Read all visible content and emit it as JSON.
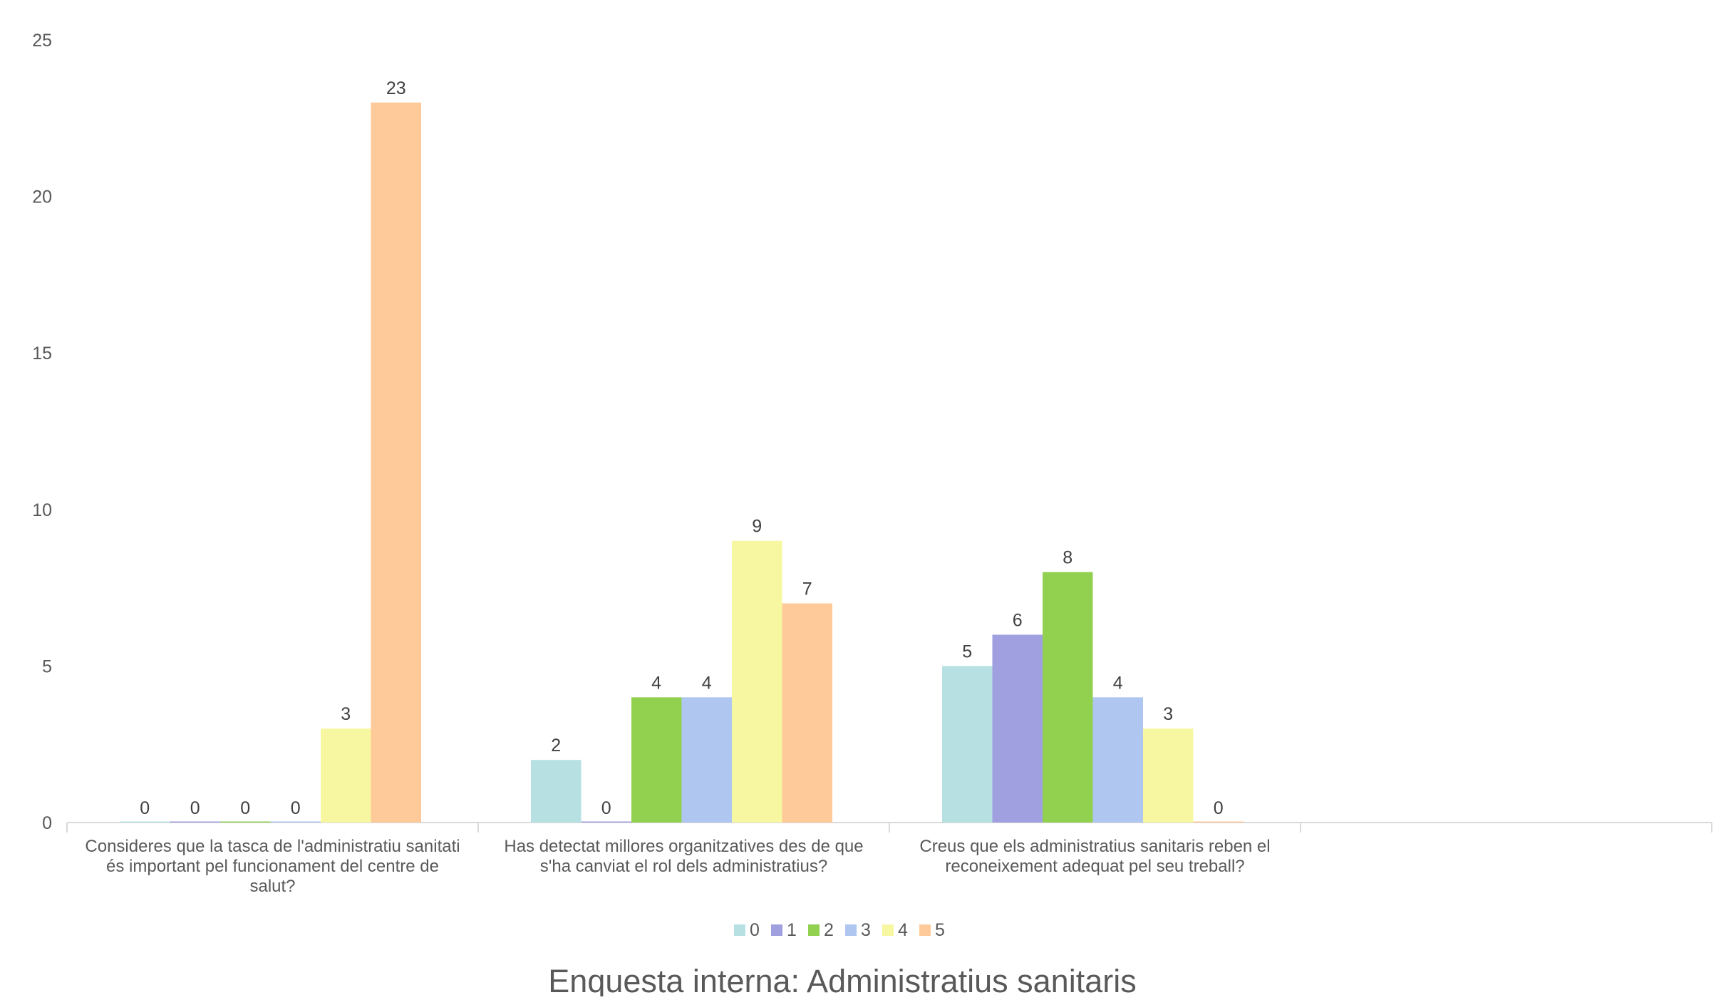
{
  "chart_data": {
    "type": "bar",
    "title": "Enquesta interna: Administratius sanitaris",
    "xlabel": "",
    "ylabel": "",
    "ylim": [
      0,
      25
    ],
    "yticks": [
      0,
      5,
      10,
      15,
      20,
      25
    ],
    "grid": false,
    "legend_position": "bottom",
    "categories": [
      "Consideres que la tasca de l'administratiu sanitati és important pel funcionament del centre de salut?",
      "Has detectat millores organitzatives des de que s'ha canviat el rol dels administratius?",
      "Creus que els administratius sanitaris reben el reconeixement adequat pel seu treball?",
      ""
    ],
    "category_lines": [
      [
        "Consideres que la tasca de l'administratiu sanitati",
        "és important pel funcionament del centre de",
        "salut?"
      ],
      [
        "Has detectat millores organitzatives des de que",
        "s'ha canviat el rol dels administratius?"
      ],
      [
        "Creus que els administratius sanitaris reben el",
        "reconeixement adequat pel seu treball?"
      ],
      []
    ],
    "series": [
      {
        "name": "0",
        "color": "#b7e0e3",
        "values": [
          0,
          2,
          5,
          null
        ]
      },
      {
        "name": "1",
        "color": "#a09fe0",
        "values": [
          0,
          0,
          6,
          null
        ]
      },
      {
        "name": "2",
        "color": "#92d050",
        "values": [
          0,
          4,
          8,
          null
        ]
      },
      {
        "name": "3",
        "color": "#aec6f0",
        "values": [
          0,
          4,
          4,
          null
        ]
      },
      {
        "name": "4",
        "color": "#f7f7a1",
        "values": [
          3,
          9,
          3,
          null
        ]
      },
      {
        "name": "5",
        "color": "#ffca99",
        "values": [
          23,
          7,
          0,
          null
        ]
      }
    ]
  }
}
